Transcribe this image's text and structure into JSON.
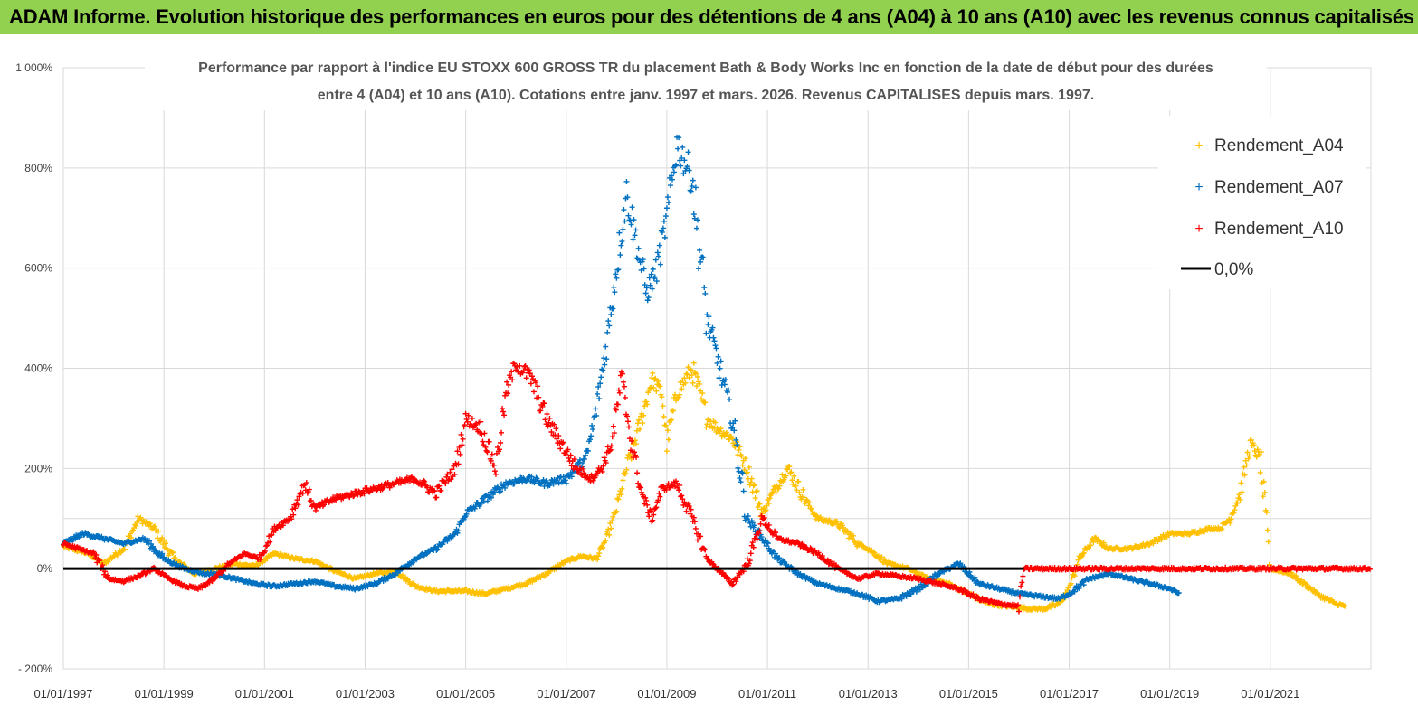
{
  "banner": "ADAM Informe. Evolution historique des performances en euros pour des détentions de 4 ans (A04) à 10 ans (A10) avec les revenus connus capitalisés",
  "colors": {
    "banner_bg": "#92d050",
    "A04": "#ffc000",
    "A07": "#0070c0",
    "A10": "#ff0000",
    "zero": "#000000"
  },
  "chart_data": {
    "type": "scatter",
    "title_lines": [
      "Performance par rapport à l'indice EU STOXX 600 GROSS TR  du placement Bath & Body Works Inc en fonction de la date de début pour des durées",
      "entre 4 (A04) et 10 ans (A10). Cotations entre janv. 1997 et mars. 2026. Revenus CAPITALISES depuis mars. 1997."
    ],
    "y_ticks": [
      "1 000%",
      "800%",
      "600%",
      "400%",
      "200%",
      "0%",
      "- 200%"
    ],
    "y_tick_values": [
      1000,
      800,
      600,
      400,
      200,
      0,
      -200
    ],
    "ylim": [
      -200,
      1000
    ],
    "xlim": [
      1997.0,
      2023.0
    ],
    "x_ticks": [
      "01/01/1997",
      "01/01/1999",
      "01/01/2001",
      "01/01/2003",
      "01/01/2005",
      "01/01/2007",
      "01/01/2009",
      "01/01/2011",
      "01/01/2013",
      "01/01/2015",
      "01/01/2017",
      "01/01/2019",
      "01/01/2021"
    ],
    "x_tick_values": [
      1997,
      1999,
      2001,
      2003,
      2005,
      2007,
      2009,
      2011,
      2013,
      2015,
      2017,
      2019,
      2021
    ],
    "legend_position": "top-right",
    "series": [
      {
        "name": "Rendement_A04",
        "color": "#ffc000",
        "x": [
          1997.0,
          1997.5,
          1997.8,
          1998.2,
          1998.5,
          1998.8,
          1999.2,
          1999.6,
          2000.0,
          2000.4,
          2000.8,
          2001.2,
          2001.6,
          2002.0,
          2002.4,
          2002.8,
          2003.2,
          2003.6,
          2004.0,
          2004.4,
          2004.8,
          2005.0,
          2005.4,
          2005.8,
          2006.2,
          2006.6,
          2007.0,
          2007.3,
          2007.6,
          2007.8,
          2008.0,
          2008.2,
          2008.5,
          2008.7,
          2008.9,
          2009.0,
          2009.2,
          2009.5,
          2009.8,
          2010.0,
          2010.3,
          2010.6,
          2010.9,
          2011.1,
          2011.4,
          2011.8,
          2012.0,
          2012.4,
          2012.8,
          2013.0,
          2013.4,
          2013.8,
          2014.2,
          2014.6,
          2015.0,
          2015.4,
          2015.8,
          2016.2,
          2016.5,
          2016.8,
          2017.0,
          2017.2,
          2017.5,
          2017.8,
          2018.2,
          2018.6,
          2019.0,
          2019.4,
          2019.8,
          2020.0,
          2020.2,
          2020.4,
          2020.6,
          2020.8,
          2021.0,
          2021.4,
          2021.8,
          2022.0,
          2022.3,
          2022.5
        ],
        "y": [
          45,
          30,
          10,
          40,
          100,
          80,
          20,
          -10,
          0,
          10,
          5,
          30,
          20,
          15,
          -5,
          -20,
          -10,
          -5,
          -35,
          -45,
          -45,
          -45,
          -50,
          -40,
          -30,
          -10,
          15,
          25,
          20,
          60,
          120,
          200,
          300,
          380,
          350,
          250,
          350,
          400,
          300,
          280,
          260,
          200,
          110,
          150,
          200,
          130,
          100,
          90,
          50,
          40,
          10,
          0,
          -20,
          -30,
          -50,
          -70,
          -75,
          -80,
          -80,
          -70,
          -40,
          20,
          60,
          40,
          40,
          50,
          70,
          70,
          80,
          80,
          100,
          150,
          250,
          220,
          0,
          -10,
          -40,
          -55,
          -70,
          -75
        ]
      },
      {
        "name": "Rendement_A07",
        "color": "#0070c0",
        "x": [
          1997.0,
          1997.4,
          1997.8,
          1998.2,
          1998.6,
          1999.0,
          1999.4,
          1999.8,
          2000.0,
          2000.4,
          2000.8,
          2001.2,
          2001.6,
          2002.0,
          2002.4,
          2002.8,
          2003.2,
          2003.6,
          2004.0,
          2004.4,
          2004.8,
          2005.0,
          2005.4,
          2005.8,
          2006.2,
          2006.6,
          2007.0,
          2007.4,
          2007.6,
          2007.8,
          2008.0,
          2008.2,
          2008.4,
          2008.6,
          2008.8,
          2009.0,
          2009.2,
          2009.5,
          2009.8,
          2010.0,
          2010.3,
          2010.6,
          2010.9,
          2011.2,
          2011.6,
          2012.0,
          2012.4,
          2012.8,
          2013.2,
          2013.6,
          2014.0,
          2014.4,
          2014.8,
          2015.2,
          2015.6,
          2016.0,
          2016.4,
          2016.8,
          2017.0,
          2017.4,
          2017.8,
          2018.2,
          2018.6,
          2019.0,
          2019.2
        ],
        "y": [
          50,
          70,
          60,
          50,
          60,
          20,
          0,
          -10,
          -10,
          -20,
          -30,
          -35,
          -30,
          -25,
          -35,
          -40,
          -30,
          -10,
          20,
          40,
          70,
          110,
          140,
          170,
          180,
          170,
          180,
          220,
          320,
          450,
          600,
          750,
          650,
          550,
          600,
          700,
          850,
          780,
          500,
          420,
          300,
          100,
          60,
          20,
          -10,
          -30,
          -40,
          -50,
          -65,
          -60,
          -40,
          -10,
          10,
          -30,
          -40,
          -50,
          -55,
          -60,
          -50,
          -20,
          -10,
          -20,
          -30,
          -40,
          -50
        ]
      },
      {
        "name": "Rendement_A10",
        "color": "#ff0000",
        "x": [
          1997.0,
          1997.3,
          1997.6,
          1997.9,
          1998.2,
          1998.5,
          1998.8,
          1999.1,
          1999.4,
          1999.7,
          2000.0,
          2000.3,
          2000.6,
          2000.9,
          2001.2,
          2001.5,
          2001.8,
          2002.0,
          2002.4,
          2002.8,
          2003.2,
          2003.6,
          2004.0,
          2004.4,
          2004.8,
          2005.0,
          2005.3,
          2005.6,
          2005.8,
          2006.0,
          2006.3,
          2006.6,
          2006.9,
          2007.2,
          2007.5,
          2007.7,
          2007.9,
          2008.1,
          2008.3,
          2008.5,
          2008.7,
          2008.9,
          2009.2,
          2009.5,
          2009.8,
          2010.0,
          2010.3,
          2010.6,
          2010.9,
          2011.2,
          2011.6,
          2012.0,
          2012.4,
          2012.8,
          2013.2,
          2013.6,
          2014.0,
          2014.4,
          2014.8,
          2015.2,
          2015.6,
          2016.0,
          2016.1,
          2016.5,
          2017.0,
          2017.5,
          2018.0,
          2018.5,
          2019.0,
          2019.5,
          2020.0,
          2020.5,
          2021.0,
          2021.5,
          2022.0,
          2022.5,
          2023.0
        ],
        "y": [
          50,
          40,
          30,
          -20,
          -25,
          -15,
          0,
          -20,
          -35,
          -40,
          -20,
          10,
          30,
          20,
          80,
          100,
          170,
          120,
          140,
          150,
          160,
          170,
          180,
          150,
          200,
          300,
          280,
          200,
          350,
          410,
          380,
          300,
          250,
          200,
          180,
          200,
          250,
          380,
          250,
          150,
          100,
          160,
          170,
          100,
          20,
          0,
          -30,
          10,
          100,
          60,
          50,
          30,
          0,
          -20,
          -10,
          -15,
          -20,
          -30,
          -40,
          -60,
          -70,
          -75,
          0,
          0,
          0,
          0,
          0,
          0,
          0,
          0,
          0,
          0,
          0,
          0,
          0,
          0,
          0
        ]
      }
    ],
    "reference_line": {
      "name": "0,0%",
      "value": 0
    }
  }
}
